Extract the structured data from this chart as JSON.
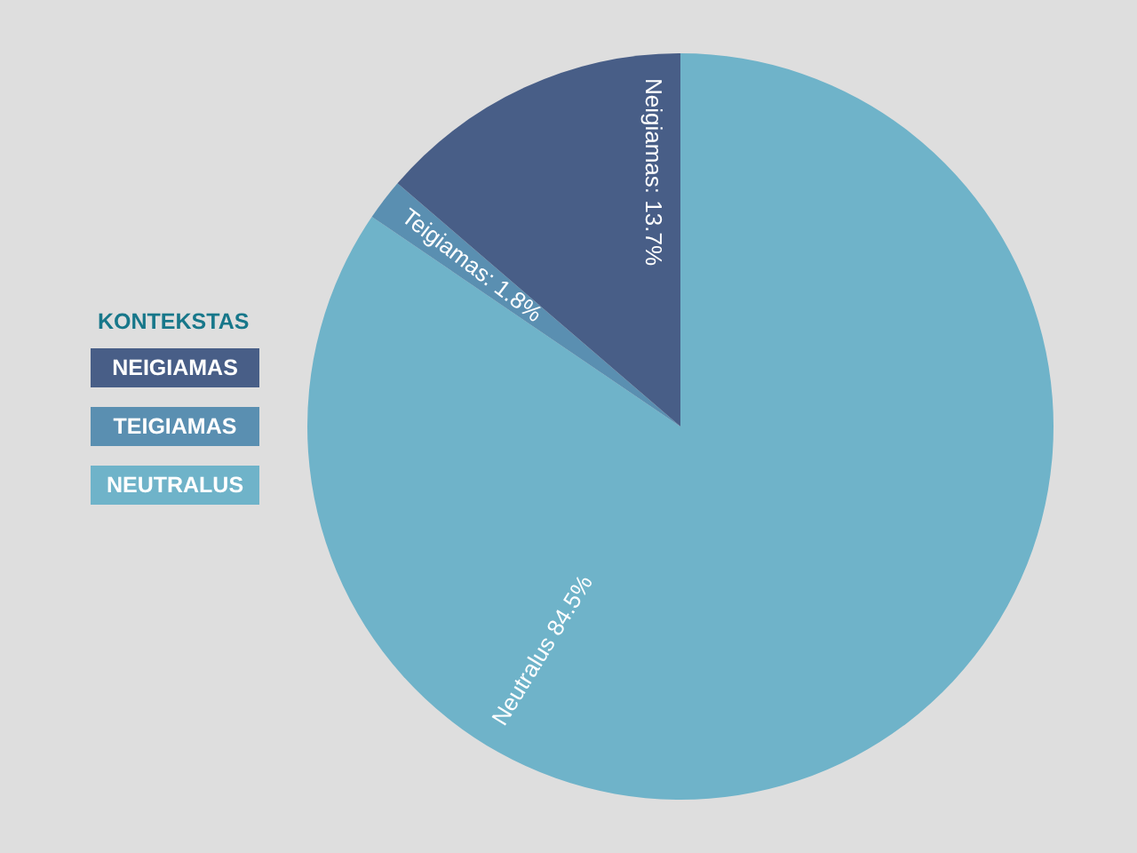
{
  "chart_data": {
    "type": "pie",
    "legend_title": "KONTEKSTAS",
    "legend": "left",
    "categories": [
      "NEIGIAMAS",
      "TEIGIAMAS",
      "NEUTRALUS"
    ],
    "values": [
      13.7,
      1.8,
      84.5
    ],
    "colors": [
      "#485e87",
      "#5a8fb1",
      "#6fb3c9"
    ],
    "value_labels": [
      "Neigiamas: 13.7%",
      "Teigiamas: 1.8%",
      "Neutralus 84.5%"
    ]
  }
}
